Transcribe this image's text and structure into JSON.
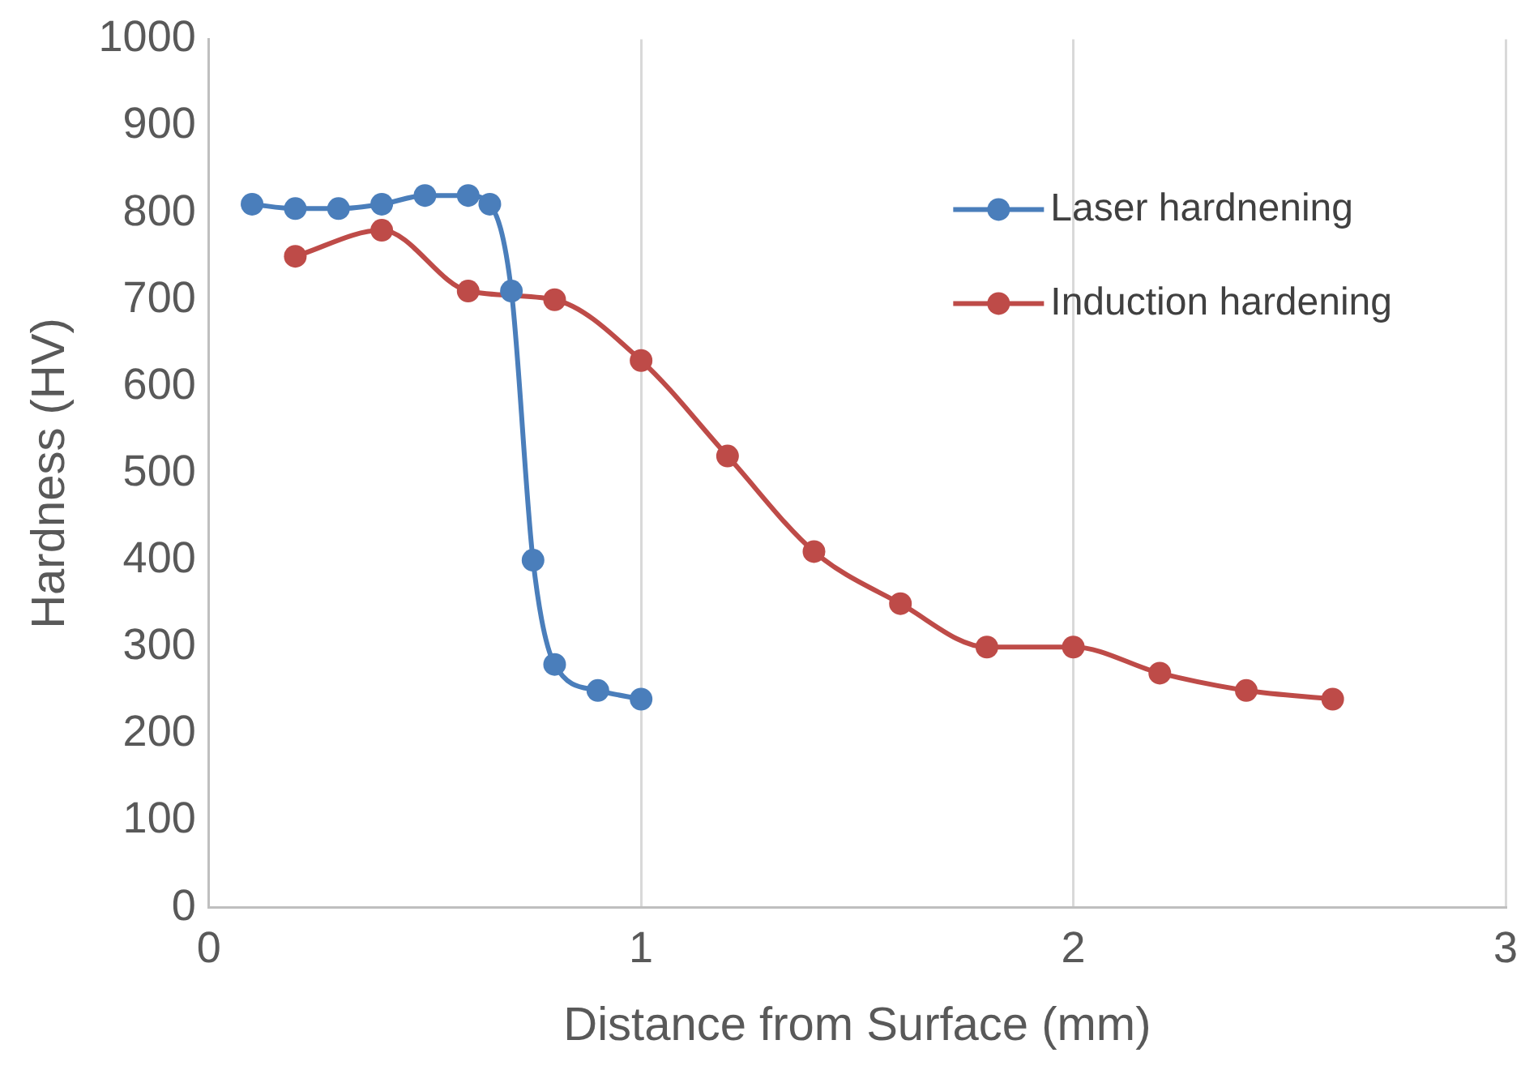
{
  "chart_data": {
    "type": "line",
    "xlabel": "Distance from Surface (mm)",
    "ylabel": "Hardness (HV)",
    "xlim": [
      0,
      3
    ],
    "xticks": [
      0,
      1,
      2,
      3
    ],
    "ylim": [
      0,
      1000
    ],
    "yticks": [
      0,
      100,
      200,
      300,
      400,
      500,
      600,
      700,
      800,
      900,
      1000
    ],
    "grid": "x",
    "legend": "top right",
    "marker": "circle",
    "line_style": "solid",
    "series": [
      {
        "name": "Laser hardnening",
        "color": "#4a7ebb",
        "x": [
          0.1,
          0.2,
          0.3,
          0.4,
          0.5,
          0.6,
          0.65,
          0.7,
          0.75,
          0.8,
          0.9,
          1.0
        ],
        "values": [
          810,
          805,
          805,
          810,
          820,
          820,
          810,
          710,
          400,
          280,
          250,
          240
        ]
      },
      {
        "name": "Induction hardening",
        "color": "#be4b48",
        "x": [
          0.2,
          0.4,
          0.6,
          0.8,
          1.0,
          1.2,
          1.4,
          1.6,
          1.8,
          2.0,
          2.2,
          2.4,
          2.6
        ],
        "values": [
          750,
          780,
          710,
          700,
          630,
          520,
          410,
          350,
          300,
          300,
          270,
          250,
          240
        ]
      }
    ]
  }
}
